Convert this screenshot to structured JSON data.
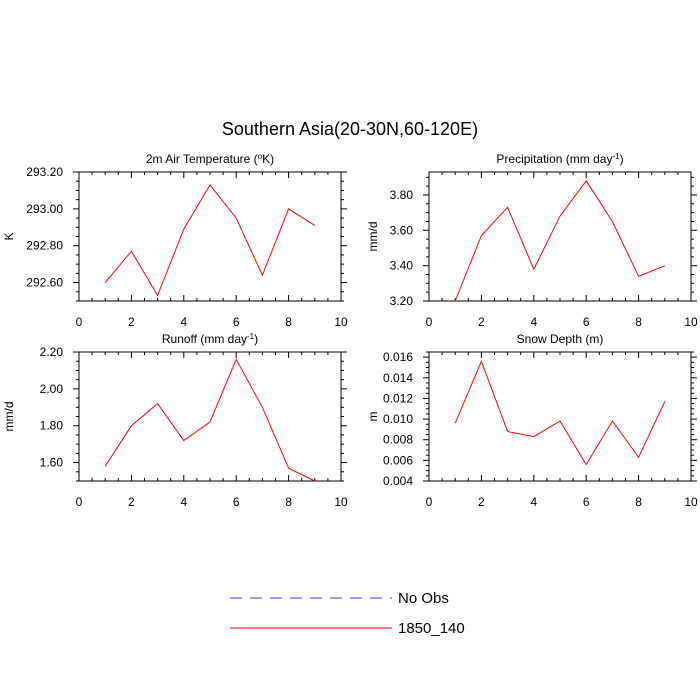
{
  "figure": {
    "title": "Southern Asia(20-30N,60-120E)"
  },
  "legend": {
    "entries": [
      {
        "label": "No Obs",
        "color": "#3333ff",
        "dash": "dashed"
      },
      {
        "label": "1850_140",
        "color": "#ff0000",
        "dash": "solid"
      }
    ]
  },
  "chart_data": [
    {
      "type": "line",
      "title": "2m Air Temperature (°K)",
      "title_main": "2m Air Temperature (",
      "title_sup": "o",
      "title_tail": "K)",
      "xlabel": "",
      "ylabel": "K",
      "xlim": [
        0,
        10
      ],
      "ylim": [
        292.5,
        293.2
      ],
      "xticks": [
        0,
        2,
        4,
        6,
        8,
        10
      ],
      "yticks": [
        292.6,
        292.8,
        293.0,
        293.2
      ],
      "ytick_labels": [
        "292.60",
        "292.80",
        "293.00",
        "293.20"
      ],
      "series": [
        {
          "name": "1850_140",
          "color": "#ff0000",
          "x": [
            1,
            2,
            3,
            4,
            5,
            6,
            7,
            8,
            9
          ],
          "y": [
            292.6,
            292.77,
            292.53,
            292.89,
            293.13,
            292.95,
            292.64,
            293.0,
            292.91
          ]
        }
      ]
    },
    {
      "type": "line",
      "title": "Precipitation (mm day-1)",
      "title_main": "Precipitation (mm day",
      "title_sup": "-1",
      "title_tail": ")",
      "xlabel": "",
      "ylabel": "mm/d",
      "xlim": [
        0,
        10
      ],
      "ylim": [
        3.2,
        3.93
      ],
      "xticks": [
        0,
        2,
        4,
        6,
        8,
        10
      ],
      "yticks": [
        3.2,
        3.4,
        3.6,
        3.8
      ],
      "ytick_labels": [
        "3.20",
        "3.40",
        "3.60",
        "3.80"
      ],
      "series": [
        {
          "name": "1850_140",
          "color": "#ff0000",
          "x": [
            1,
            2,
            3,
            4,
            5,
            6,
            7,
            8,
            9
          ],
          "y": [
            3.2,
            3.57,
            3.73,
            3.38,
            3.68,
            3.88,
            3.65,
            3.34,
            3.4
          ]
        }
      ]
    },
    {
      "type": "line",
      "title": "Runoff (mm day-1)",
      "title_main": "Runoff (mm day",
      "title_sup": "-1",
      "title_tail": ")",
      "xlabel": "",
      "ylabel": "mm/d",
      "xlim": [
        0,
        10
      ],
      "ylim": [
        1.5,
        2.2
      ],
      "xticks": [
        0,
        2,
        4,
        6,
        8,
        10
      ],
      "yticks": [
        1.6,
        1.8,
        2.0,
        2.2
      ],
      "ytick_labels": [
        "1.60",
        "1.80",
        "2.00",
        "2.20"
      ],
      "series": [
        {
          "name": "1850_140",
          "color": "#ff0000",
          "x": [
            1,
            2,
            3,
            4,
            5,
            6,
            7,
            8,
            9
          ],
          "y": [
            1.58,
            1.8,
            1.92,
            1.72,
            1.82,
            2.16,
            1.9,
            1.57,
            1.5
          ]
        }
      ]
    },
    {
      "type": "line",
      "title": "Snow Depth (m)",
      "title_main": "Snow Depth (m)",
      "title_sup": "",
      "title_tail": "",
      "xlabel": "",
      "ylabel": "m",
      "xlim": [
        0,
        10
      ],
      "ylim": [
        0.004,
        0.0165
      ],
      "xticks": [
        0,
        2,
        4,
        6,
        8,
        10
      ],
      "yticks": [
        0.004,
        0.006,
        0.008,
        0.01,
        0.012,
        0.014,
        0.016
      ],
      "ytick_labels": [
        "0.004",
        "0.006",
        "0.008",
        "0.010",
        "0.012",
        "0.014",
        "0.016"
      ],
      "series": [
        {
          "name": "1850_140",
          "color": "#ff0000",
          "x": [
            1,
            2,
            3,
            4,
            5,
            6,
            7,
            8,
            9
          ],
          "y": [
            0.0096,
            0.0156,
            0.0088,
            0.0083,
            0.0098,
            0.0056,
            0.0098,
            0.0063,
            0.0117
          ]
        }
      ]
    }
  ]
}
